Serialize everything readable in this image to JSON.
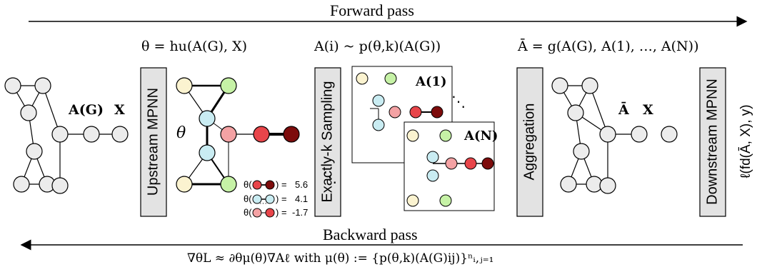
{
  "forward_pass": "Forward pass",
  "backward_pass": "Backward pass",
  "backward_formula": "∇θL ≈ ∂θμ(θ)∇Aℓ  with  μ(θ) := {p(θ,k)(A(G)ij)}ⁿᵢ,ⱼ₌₁",
  "stage_formulas": {
    "upstream": "θ = hu(A(G), X)",
    "sampling": "A(i) ~ p(θ,k)(A(G))",
    "aggregation": "Ā = g(A(G), A(1), …, A(N))"
  },
  "boxes": {
    "upstream": "Upstream MPNN",
    "sampling": "Exactly-k Sampling",
    "aggregation": "Aggregation",
    "downstream": "Downstream MPNN"
  },
  "graph_labels": {
    "input_adj": "A(G)",
    "input_x": "X",
    "theta": "θ",
    "sample_1": "A(1)",
    "sample_n": "A(N)",
    "agg_adj": "Ā",
    "agg_x": "X"
  },
  "loss_label": "ℓ(fd(Ā, X), y)",
  "legend": [
    {
      "prefix": "θ(",
      "suffix": ") =",
      "value": "5.6"
    },
    {
      "prefix": "θ(",
      "suffix": ") =",
      "value": "4.1"
    },
    {
      "prefix": "θ(",
      "suffix": ") =",
      "value": "-1.7"
    }
  ],
  "legend_ellipsis": "···",
  "colors": {
    "gray_node": "#ececec",
    "yellow_node": "#fbf3d0",
    "green_node": "#c6f2a6",
    "blue_node": "#c9ecf2",
    "pink_node": "#f4a2a4",
    "red_node": "#e8454a",
    "darkred_node": "#7d0c0c",
    "box_fill": "#e3e3e3"
  }
}
